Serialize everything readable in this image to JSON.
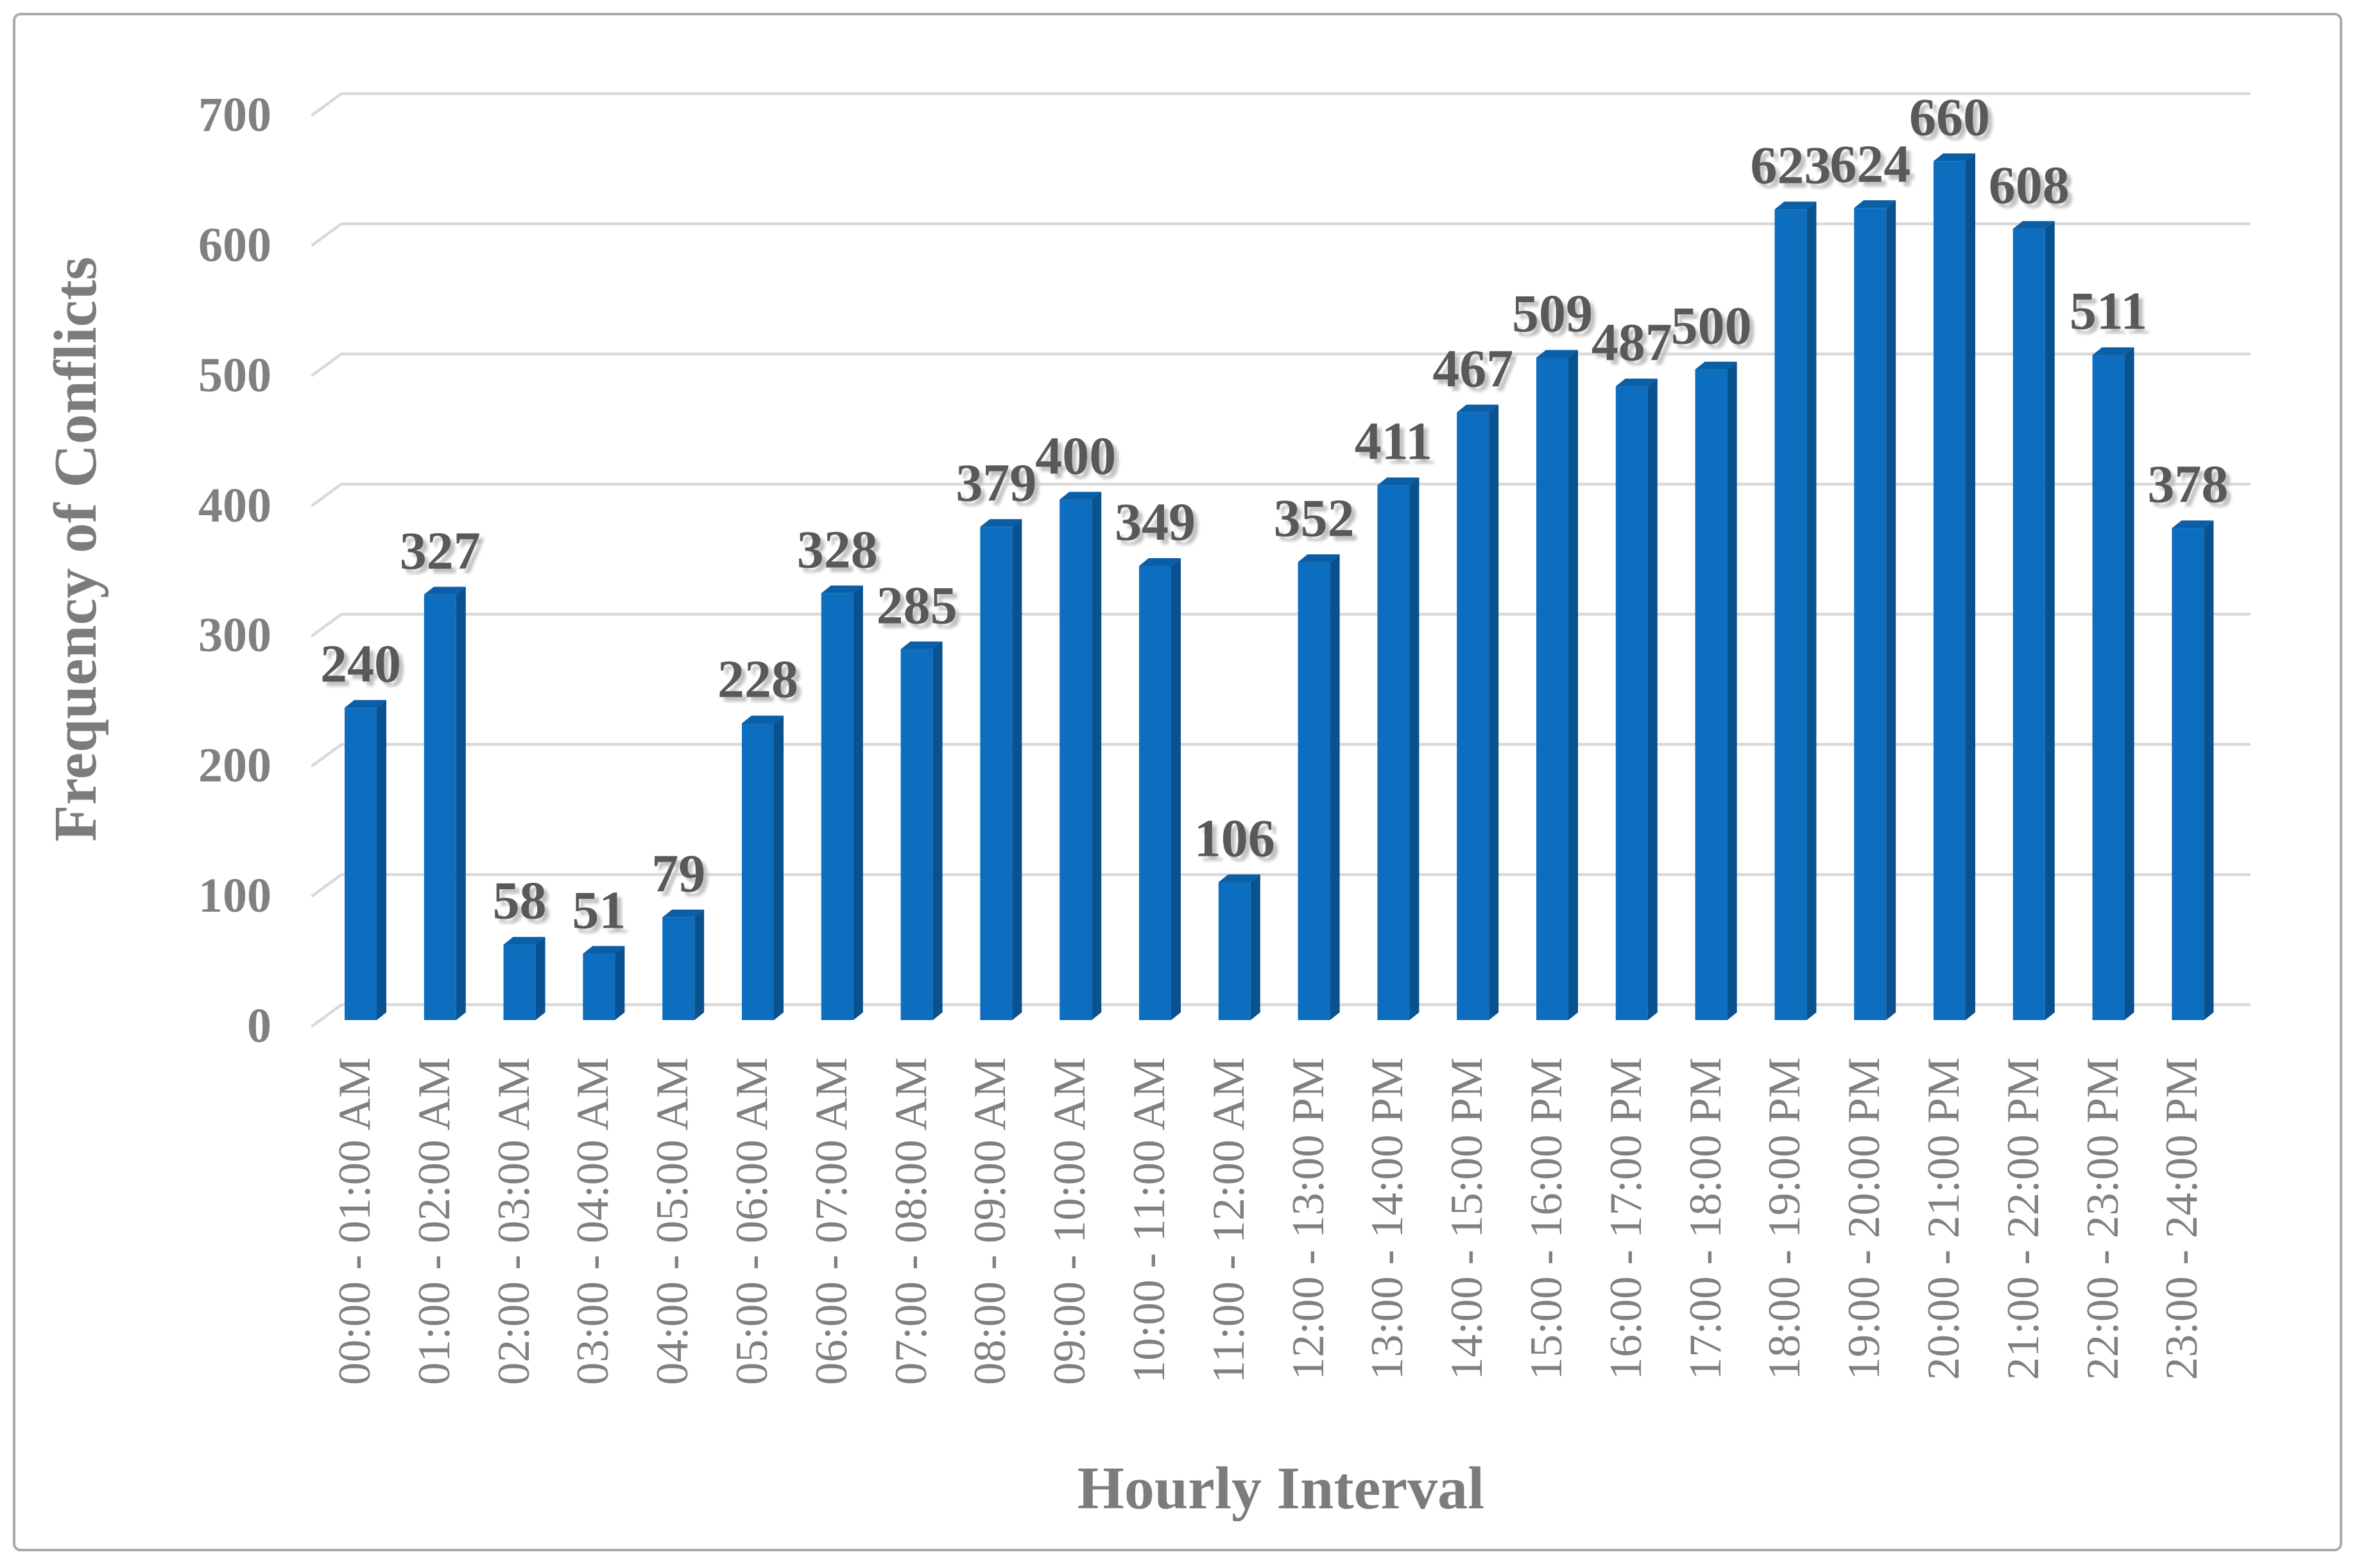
{
  "chart_data": {
    "type": "bar",
    "title": "",
    "xlabel": "Hourly Interval",
    "ylabel": "Frequency of Conflicts",
    "categories": [
      "00:00 - 01:00 AM",
      "01:00 - 02:00 AM",
      "02:00 - 03:00 AM",
      "03:00 - 04:00 AM",
      "04:00 - 05:00 AM",
      "05:00 - 06:00 AM",
      "06:00 - 07:00 AM",
      "07:00 - 08:00 AM",
      "08:00 - 09:00 AM",
      "09:00 - 10:00 AM",
      "10:00 - 11:00 AM",
      "11:00 - 12:00 AM",
      "12:00 - 13:00 PM",
      "13:00 - 14:00 PM",
      "14:00 - 15:00 PM",
      "15:00 - 16:00 PM",
      "16:00 - 17:00 PM",
      "17:00 - 18:00 PM",
      "18:00 - 19:00 PM",
      "19:00 - 20:00 PM",
      "20:00 - 21:00 PM",
      "21:00 - 22:00 PM",
      "22:00 - 23:00 PM",
      "23:00 - 24:00 PM"
    ],
    "values": [
      240,
      327,
      58,
      51,
      79,
      228,
      328,
      285,
      379,
      400,
      349,
      106,
      352,
      411,
      467,
      509,
      487,
      500,
      623,
      624,
      660,
      608,
      511,
      378
    ],
    "y_ticks": [
      0,
      100,
      200,
      300,
      400,
      500,
      600,
      700
    ],
    "ylim": [
      0,
      700
    ],
    "grid": true,
    "legend": "none",
    "style": "3d-column",
    "colors": {
      "bar_front": "#0d6ebf",
      "bar_top": "#0a5fa6",
      "bar_side": "#09518f",
      "gridline": "#d9d9d9",
      "tick_label": "#808080",
      "data_label": "#595959",
      "axis_title": "#7c7c7c",
      "figure_border": "#ababab",
      "background": "#ffffff"
    }
  }
}
